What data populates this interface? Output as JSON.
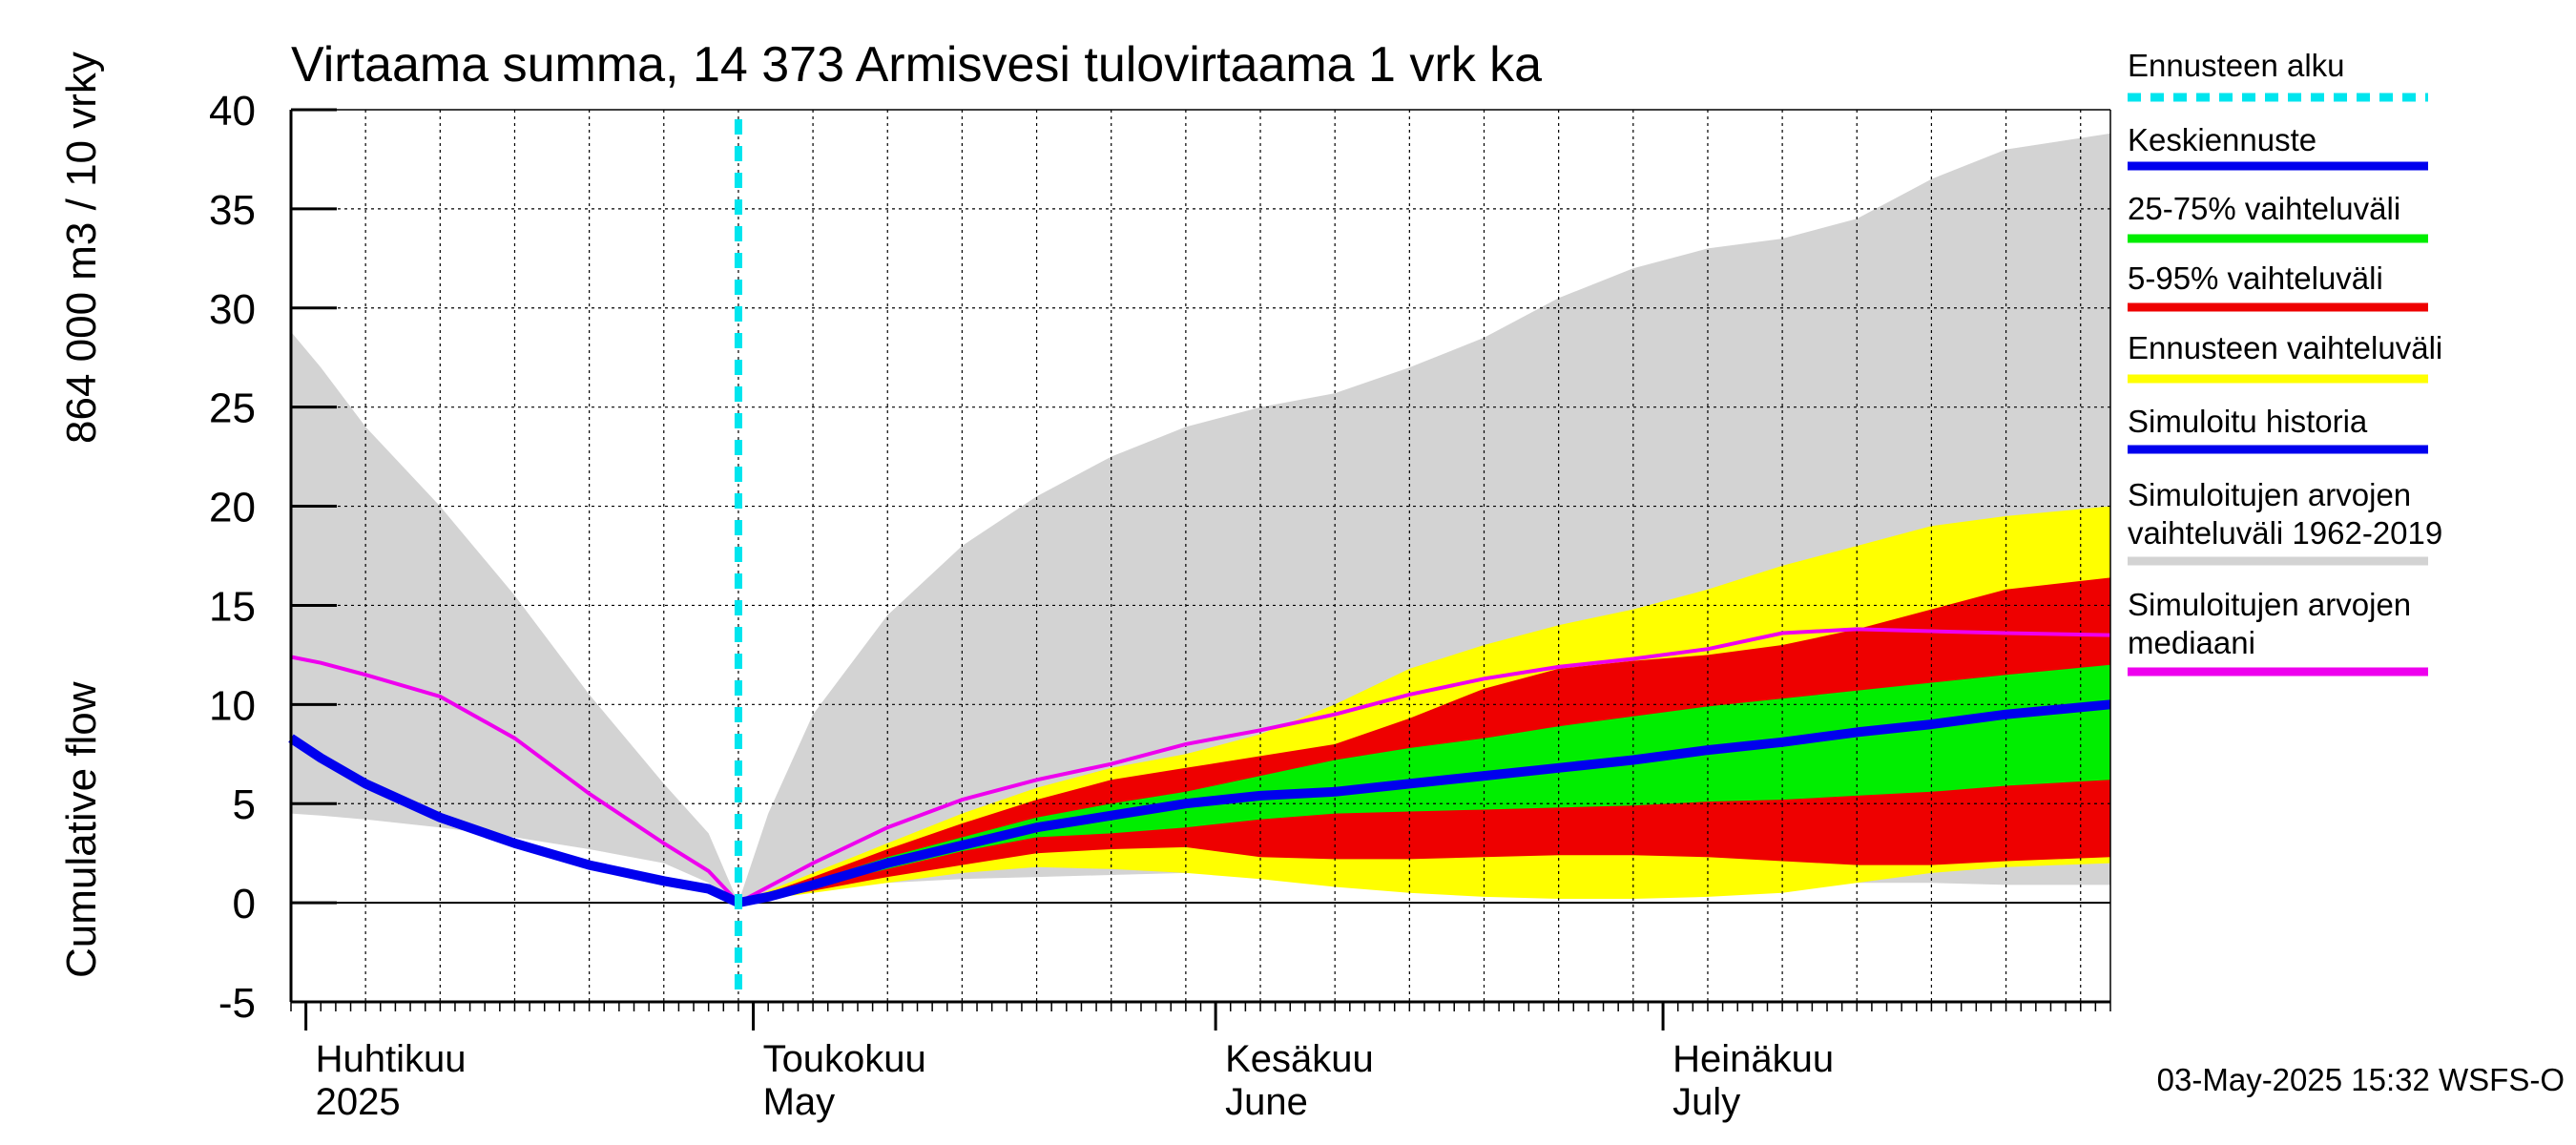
{
  "chart_data": {
    "type": "area",
    "title": "Virtaama summa, 14 373 Armisvesi tulovirtaama 1 vrk ka",
    "ylabel_line1": "Cumulative flow",
    "ylabel_line2": "864 000 m3 / 10 vrky",
    "ylim": [
      -5,
      40
    ],
    "yticks": [
      "-5",
      "0",
      "5",
      "10",
      "15",
      "20",
      "25",
      "30",
      "35",
      "40"
    ],
    "xlim_days": [
      90,
      212
    ],
    "grid": true,
    "legend_position": "right",
    "forecast_start_day": 120,
    "month_labels": [
      {
        "fi": "Huhtikuu",
        "en": "2025",
        "day": 91
      },
      {
        "fi": "Toukokuu",
        "en": "May",
        "day": 121
      },
      {
        "fi": "Kesäkuu",
        "en": "June",
        "day": 152
      },
      {
        "fi": "Heinäkuu",
        "en": "July",
        "day": 182
      }
    ],
    "days": [
      90,
      92,
      95,
      100,
      105,
      110,
      115,
      118,
      120,
      122,
      125,
      130,
      135,
      140,
      145,
      150,
      155,
      160,
      165,
      170,
      175,
      180,
      185,
      190,
      195,
      200,
      205,
      212
    ],
    "hist_range": {
      "name": "Simuloitujen arvojen vaihteluväli 1962-2019",
      "low": [
        4.5,
        4.4,
        4.2,
        3.8,
        3.3,
        2.7,
        2.0,
        1.0,
        0,
        0.4,
        0.8,
        1.0,
        1.2,
        1.3,
        1.4,
        1.5,
        1.6,
        1.5,
        1.3,
        1.2,
        1.2,
        1.2,
        1.1,
        1.1,
        1.0,
        1.0,
        0.9,
        0.9
      ],
      "high": [
        28.8,
        27,
        24,
        20,
        15.5,
        10.5,
        6.0,
        3.5,
        0,
        4.5,
        9.5,
        14.5,
        18.0,
        20.5,
        22.5,
        24.0,
        25.0,
        25.7,
        27.0,
        28.5,
        30.5,
        32.0,
        33.0,
        33.5,
        34.5,
        36.5,
        38.0,
        38.8
      ]
    },
    "forecast_range": {
      "name": "Ennusteen vaihteluväli",
      "low": [
        null,
        null,
        null,
        null,
        null,
        null,
        null,
        null,
        0,
        0.2,
        0.5,
        1.0,
        1.5,
        1.8,
        1.7,
        1.5,
        1.2,
        0.8,
        0.5,
        0.3,
        0.2,
        0.2,
        0.3,
        0.5,
        1.0,
        1.5,
        1.8,
        2.0
      ],
      "high": [
        null,
        null,
        null,
        null,
        null,
        null,
        null,
        null,
        0,
        0.6,
        1.5,
        3.0,
        4.5,
        5.8,
        6.8,
        7.5,
        8.5,
        10.0,
        11.8,
        13.0,
        14.0,
        14.8,
        15.8,
        17.0,
        18.0,
        19.0,
        19.5,
        20.0
      ]
    },
    "p5_95": {
      "name": "5-95% vaihteluväli",
      "low": [
        null,
        null,
        null,
        null,
        null,
        null,
        null,
        null,
        0,
        0.2,
        0.6,
        1.3,
        1.9,
        2.5,
        2.7,
        2.8,
        2.3,
        2.2,
        2.2,
        2.3,
        2.4,
        2.4,
        2.3,
        2.1,
        1.9,
        1.9,
        2.1,
        2.3
      ],
      "high": [
        null,
        null,
        null,
        null,
        null,
        null,
        null,
        null,
        0,
        0.5,
        1.3,
        2.7,
        4.0,
        5.2,
        6.2,
        6.8,
        7.4,
        8.0,
        9.3,
        10.8,
        11.8,
        12.2,
        12.5,
        13.0,
        13.8,
        14.8,
        15.8,
        16.4
      ]
    },
    "p25_75": {
      "name": "25-75% vaihteluväli",
      "low": [
        null,
        null,
        null,
        null,
        null,
        null,
        null,
        null,
        0,
        0.3,
        0.8,
        1.7,
        2.6,
        3.3,
        3.5,
        3.8,
        4.2,
        4.5,
        4.6,
        4.7,
        4.8,
        4.9,
        5.1,
        5.2,
        5.4,
        5.6,
        5.9,
        6.2
      ],
      "high": [
        null,
        null,
        null,
        null,
        null,
        null,
        null,
        null,
        0,
        0.4,
        1.1,
        2.3,
        3.3,
        4.3,
        5.0,
        5.6,
        6.4,
        7.2,
        7.8,
        8.3,
        8.9,
        9.4,
        9.9,
        10.3,
        10.7,
        11.1,
        11.5,
        12.0
      ]
    },
    "forecast_mean": {
      "name": "Keskiennuste",
      "values": [
        null,
        null,
        null,
        null,
        null,
        null,
        null,
        null,
        0,
        0.3,
        0.9,
        2.0,
        2.9,
        3.8,
        4.4,
        5.0,
        5.4,
        5.6,
        6.0,
        6.4,
        6.8,
        7.2,
        7.7,
        8.1,
        8.6,
        9.0,
        9.5,
        10.0
      ]
    },
    "sim_history": {
      "name": "Simuloitu historia",
      "values": [
        8.3,
        7.3,
        6.0,
        4.3,
        3.0,
        1.9,
        1.1,
        0.7,
        0,
        null,
        null,
        null,
        null,
        null,
        null,
        null,
        null,
        null,
        null,
        null,
        null,
        null,
        null,
        null,
        null,
        null,
        null,
        null
      ]
    },
    "median": {
      "name": "Simuloitujen arvojen mediaani",
      "values": [
        12.4,
        12.1,
        11.5,
        10.4,
        8.3,
        5.5,
        3.0,
        1.6,
        0,
        0.8,
        2.0,
        3.8,
        5.2,
        6.2,
        7.0,
        8.0,
        8.7,
        9.5,
        10.5,
        11.3,
        11.9,
        12.3,
        12.8,
        13.6,
        13.8,
        13.7,
        13.6,
        13.5
      ]
    },
    "legend": [
      {
        "label": "Ennusteen alku",
        "color": "#00e5ee",
        "style": "dashed"
      },
      {
        "label": "Keskiennuste",
        "color": "#0000ee",
        "style": "solid"
      },
      {
        "label": "25-75% vaihteluväli",
        "color": "#00ee00",
        "style": "solid"
      },
      {
        "label": "5-95% vaihteluväli",
        "color": "#ee0000",
        "style": "solid"
      },
      {
        "label": "Ennusteen vaihteluväli",
        "color": "#ffff00",
        "style": "solid"
      },
      {
        "label": "Simuloitu historia",
        "color": "#0000ee",
        "style": "solid"
      },
      {
        "label": "Simuloitujen arvojen vaihteluväli 1962-2019",
        "color": "#d3d3d3",
        "style": "solid"
      },
      {
        "label": "Simuloitujen arvojen mediaani",
        "color": "#ee00ee",
        "style": "solid"
      }
    ],
    "colors": {
      "hist_range": "#d3d3d3",
      "forecast_range": "#ffff00",
      "p5_95": "#ee0000",
      "p25_75": "#00ee00",
      "mean": "#0000ee",
      "history": "#0000ee",
      "median": "#ee00ee",
      "forecast_start": "#00e5ee"
    }
  },
  "timestamp": "03-May-2025 15:32 WSFS-O"
}
